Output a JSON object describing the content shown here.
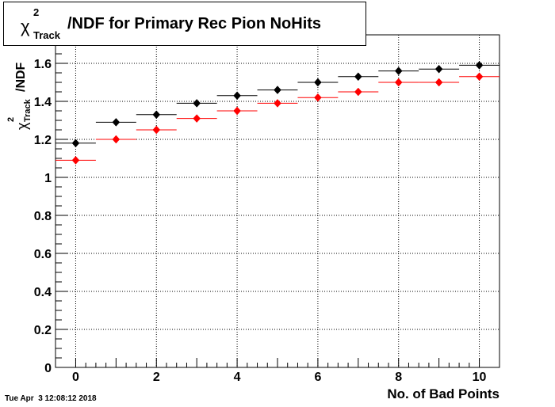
{
  "title": {
    "symbol": "χ",
    "superscript": "2",
    "subscript": "Track",
    "rest": "/NDF for Primary Rec Pion NoHits"
  },
  "timestamp": "Tue Apr  3 12:08:12 2018",
  "chart_data": {
    "type": "scatter",
    "title": "χ²_Track/NDF for Primary Rec Pion NoHits",
    "xlabel": "No. of Bad Points",
    "ylabel": "χ²_Track/NDF",
    "xlim": [
      -0.5,
      10.5
    ],
    "ylim": [
      0,
      1.75
    ],
    "x_ticks": [
      0,
      2,
      4,
      6,
      8,
      10
    ],
    "y_ticks": [
      0,
      0.2,
      0.4,
      0.6,
      0.8,
      1,
      1.2,
      1.4,
      1.6
    ],
    "y_tick_labels": [
      "0",
      "0.2",
      "0.4",
      "0.6",
      "0.8",
      "1",
      "1.2",
      "1.4",
      "1.6"
    ],
    "grid": true,
    "x": [
      0,
      1,
      2,
      3,
      4,
      5,
      6,
      7,
      8,
      9,
      10
    ],
    "x_bin_halfwidth": 0.5,
    "series": [
      {
        "color": "#000000",
        "values": [
          1.18,
          1.29,
          1.33,
          1.39,
          1.43,
          1.46,
          1.5,
          1.53,
          1.56,
          1.57,
          1.59
        ]
      },
      {
        "color": "#ff0000",
        "values": [
          1.09,
          1.2,
          1.25,
          1.31,
          1.35,
          1.39,
          1.42,
          1.45,
          1.5,
          1.5,
          1.53
        ]
      }
    ]
  }
}
